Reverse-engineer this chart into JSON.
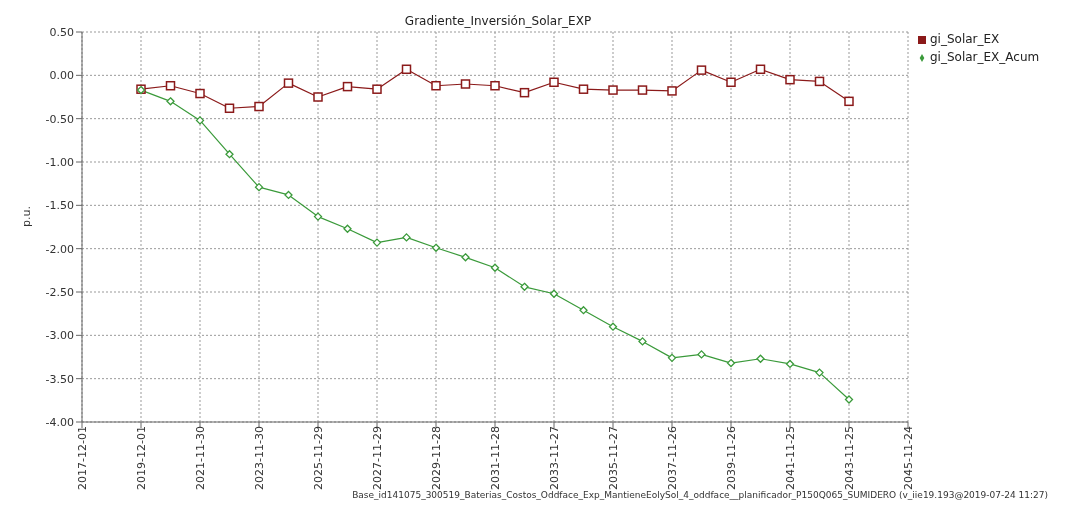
{
  "chart_data": {
    "type": "line",
    "title": "Gradiente_Inversión_Solar_EXP",
    "ylabel": "p.u.",
    "x": [
      "2019-12-01",
      "2020-11-30",
      "2021-11-30",
      "2022-11-30",
      "2023-11-30",
      "2024-11-29",
      "2025-11-29",
      "2026-11-29",
      "2027-11-29",
      "2028-11-28",
      "2029-11-28",
      "2030-11-28",
      "2031-11-28",
      "2032-11-27",
      "2033-11-27",
      "2034-11-27",
      "2035-11-27",
      "2036-11-26",
      "2037-11-26",
      "2038-11-26",
      "2039-11-26",
      "2040-11-25",
      "2041-11-25",
      "2042-11-25",
      "2043-11-25"
    ],
    "series": [
      {
        "name": "gi_Solar_EX",
        "color": "#8b1a1a",
        "marker": "square",
        "values": [
          -0.16,
          -0.12,
          -0.21,
          -0.38,
          -0.36,
          -0.09,
          -0.25,
          -0.13,
          -0.16,
          0.07,
          -0.12,
          -0.1,
          -0.12,
          -0.2,
          -0.08,
          -0.16,
          -0.17,
          -0.17,
          -0.18,
          0.06,
          -0.08,
          0.07,
          -0.05,
          -0.07,
          -0.3
        ]
      },
      {
        "name": "gi_Solar_EX_Acum",
        "color": "#3a9a3a",
        "marker": "diamond",
        "values": [
          -0.17,
          -0.3,
          -0.52,
          -0.91,
          -1.29,
          -1.38,
          -1.63,
          -1.77,
          -1.93,
          -1.87,
          -1.99,
          -2.1,
          -2.22,
          -2.44,
          -2.52,
          -2.71,
          -2.9,
          -3.07,
          -3.26,
          -3.22,
          -3.32,
          -3.27,
          -3.33,
          -3.43,
          -3.74
        ]
      }
    ],
    "xlim": [
      "2017-12-01",
      "2045-11-24"
    ],
    "xticks": [
      "2017-12-01",
      "2019-12-01",
      "2021-11-30",
      "2023-11-30",
      "2025-11-29",
      "2027-11-29",
      "2029-11-28",
      "2031-11-28",
      "2033-11-27",
      "2035-11-27",
      "2037-11-26",
      "2039-11-26",
      "2041-11-25",
      "2043-11-25",
      "2045-11-24"
    ],
    "ylim": [
      -4,
      0.5
    ],
    "yticks": [
      {
        "value": 0.5,
        "label": "0.50"
      },
      {
        "value": 0,
        "label": "0.00"
      },
      {
        "value": -0.5,
        "label": "-0.50"
      },
      {
        "value": -1,
        "label": "-1.00"
      },
      {
        "value": -1.5,
        "label": "-1.50"
      },
      {
        "value": -2,
        "label": "-2.00"
      },
      {
        "value": -2.5,
        "label": "-2.50"
      },
      {
        "value": -3,
        "label": "-3.00"
      },
      {
        "value": -3.5,
        "label": "-3.50"
      },
      {
        "value": -4,
        "label": "-4.00"
      }
    ],
    "grid": true,
    "legend": "top right",
    "line_style": "solid",
    "annotations": [
      "Base_id141075_300519_Baterias_Costos_Oddface_Exp_MantieneEolySol_4_oddface__planificador_P150Q065_SUMIDERO (v_iie19.193@2019-07-24 11:27)"
    ]
  }
}
